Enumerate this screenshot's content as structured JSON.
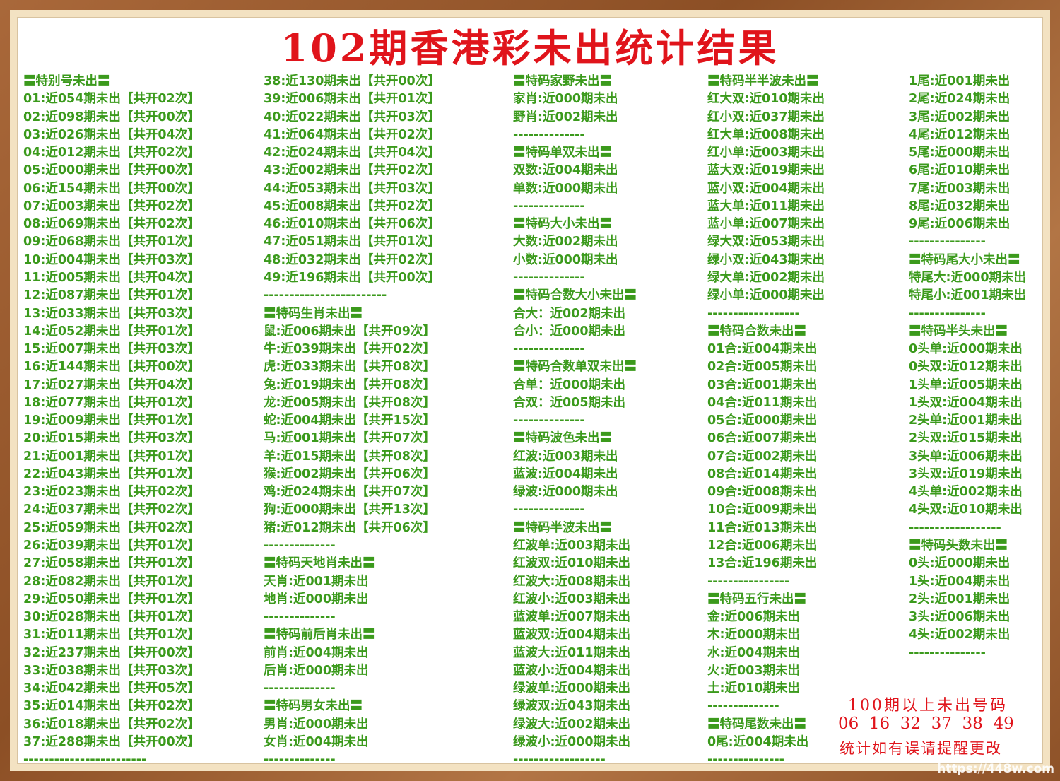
{
  "title": "102期香港彩未出统计结果",
  "columns": [
    [
      "〓特别号未出〓",
      "01:近054期未出【共开02次】",
      "02:近098期未出【共开00次】",
      "03:近026期未出【共开04次】",
      "04:近012期未出【共开02次】",
      "05:近000期未出【共开00次】",
      "06:近154期未出【共开00次】",
      "07:近003期未出【共开02次】",
      "08:近069期未出【共开02次】",
      "09:近068期未出【共开01次】",
      "10:近004期未出【共开03次】",
      "11:近005期未出【共开04次】",
      "12:近087期未出【共开01次】",
      "13:近033期未出【共开03次】",
      "14:近052期未出【共开01次】",
      "15:近007期未出【共开03次】",
      "16:近144期未出【共开00次】",
      "17:近027期未出【共开04次】",
      "18:近077期未出【共开01次】",
      "19:近009期未出【共开01次】",
      "20:近015期未出【共开03次】",
      "21:近001期未出【共开01次】",
      "22:近043期未出【共开01次】",
      "23:近023期未出【共开02次】",
      "24:近037期未出【共开02次】",
      "25:近059期未出【共开02次】",
      "26:近039期未出【共开01次】",
      "27:近058期未出【共开01次】",
      "28:近082期未出【共开01次】",
      "29:近050期未出【共开01次】",
      "30:近028期未出【共开01次】",
      "31:近011期未出【共开01次】",
      "32:近237期未出【共开00次】",
      "33:近038期未出【共开03次】",
      "34:近042期未出【共开05次】",
      "35:近014期未出【共开02次】",
      "36:近018期未出【共开02次】",
      "37:近288期未出【共开00次】",
      "------------------------"
    ],
    [
      "38:近130期未出【共开00次】",
      "39:近006期未出【共开01次】",
      "40:近022期未出【共开03次】",
      "41:近064期未出【共开02次】",
      "42:近024期未出【共开04次】",
      "43:近002期未出【共开02次】",
      "44:近053期未出【共开03次】",
      "45:近008期未出【共开02次】",
      "46:近010期未出【共开06次】",
      "47:近051期未出【共开01次】",
      "48:近032期未出【共开02次】",
      "49:近196期未出【共开00次】",
      "------------------------",
      "〓特码生肖未出〓",
      "鼠:近006期未出【共开09次】",
      "牛:近039期未出【共开02次】",
      "虎:近033期未出【共开08次】",
      "兔:近019期未出【共开08次】",
      "龙:近005期未出【共开08次】",
      "蛇:近004期未出【共开15次】",
      "马:近001期未出【共开07次】",
      "羊:近015期未出【共开08次】",
      "猴:近002期未出【共开06次】",
      "鸡:近024期未出【共开07次】",
      "狗:近000期未出【共开13次】",
      "猪:近012期未出【共开06次】",
      "--------------",
      "〓特码天地肖未出〓",
      "天肖:近001期未出",
      "地肖:近000期未出",
      "--------------",
      "〓特码前后肖未出〓",
      "前肖:近004期未出",
      "后肖:近000期未出",
      "--------------",
      "〓特码男女未出〓",
      "男肖:近000期未出",
      "女肖:近004期未出",
      "--------------"
    ],
    [
      "〓特码家野未出〓",
      "家肖:近000期未出",
      "野肖:近002期未出",
      "--------------",
      "〓特码单双未出〓",
      "双数:近004期未出",
      "单数:近000期未出",
      "--------------",
      "〓特码大小未出〓",
      "大数:近002期未出",
      "小数:近000期未出",
      "--------------",
      "〓特码合数大小未出〓",
      "合大：近002期未出",
      "合小：近000期未出",
      "--------------",
      "〓特码合数单双未出〓",
      "合单：近000期未出",
      "合双：近005期未出",
      "--------------",
      "〓特码波色未出〓",
      "红波:近003期未出",
      "蓝波:近004期未出",
      "绿波:近000期未出",
      "--------------",
      "〓特码半波未出〓",
      "红波单:近003期未出",
      "红波双:近010期未出",
      "红波大:近008期未出",
      "红波小:近003期未出",
      "蓝波单:近007期未出",
      "蓝波双:近004期未出",
      "蓝波大:近011期未出",
      "蓝波小:近004期未出",
      "绿波单:近000期未出",
      "绿波双:近043期未出",
      "绿波大:近002期未出",
      "绿波小:近000期未出",
      "------------------"
    ],
    [
      "〓特码半半波未出〓",
      "红大双:近010期未出",
      "红小双:近037期未出",
      "红大单:近008期未出",
      "红小单:近003期未出",
      "蓝大双:近019期未出",
      "蓝小双:近004期未出",
      "蓝大单:近011期未出",
      "蓝小单:近007期未出",
      "绿大双:近053期未出",
      "绿小双:近043期未出",
      "绿大单:近002期未出",
      "绿小单:近000期未出",
      "------------------",
      "〓特码合数未出〓",
      "01合:近004期未出",
      "02合:近005期未出",
      "03合:近001期未出",
      "04合:近011期未出",
      "05合:近000期未出",
      "06合:近007期未出",
      "07合:近002期未出",
      "08合:近014期未出",
      "09合:近008期未出",
      "10合:近009期未出",
      "11合:近013期未出",
      "12合:近006期未出",
      "13合:近196期未出",
      "----------------",
      "〓特码五行未出〓",
      "金:近006期未出",
      "木:近000期未出",
      "水:近004期未出",
      "火:近003期未出",
      "土:近010期未出",
      "--------------",
      "〓特码尾数未出〓",
      "0尾:近004期未出",
      "---------------"
    ],
    [
      "1尾:近001期未出",
      "2尾:近024期未出",
      "3尾:近002期未出",
      "4尾:近012期未出",
      "5尾:近000期未出",
      "6尾:近010期未出",
      "7尾:近003期未出",
      "8尾:近032期未出",
      "9尾:近006期未出",
      "---------------",
      "〓特码尾大小未出〓",
      "特尾大:近000期未出",
      "特尾小:近001期未出",
      "---------------",
      "〓特码半头未出〓",
      "0头单:近000期未出",
      "0头双:近012期未出",
      "1头单:近005期未出",
      "1头双:近004期未出",
      "2头单:近001期未出",
      "2头双:近015期未出",
      "3头单:近006期未出",
      "3头双:近019期未出",
      "4头单:近002期未出",
      "4头双:近010期未出",
      "------------------",
      "〓特码头数未出〓",
      "0头:近000期未出",
      "1头:近004期未出",
      "2头:近001期未出",
      "3头:近006期未出",
      "4头:近002期未出",
      "---------------"
    ]
  ],
  "notes": [
    "100期以上未出号码",
    "06  16  32  37  38  49",
    "统计如有误请提醒更改"
  ],
  "watermark": "https://448w.com"
}
